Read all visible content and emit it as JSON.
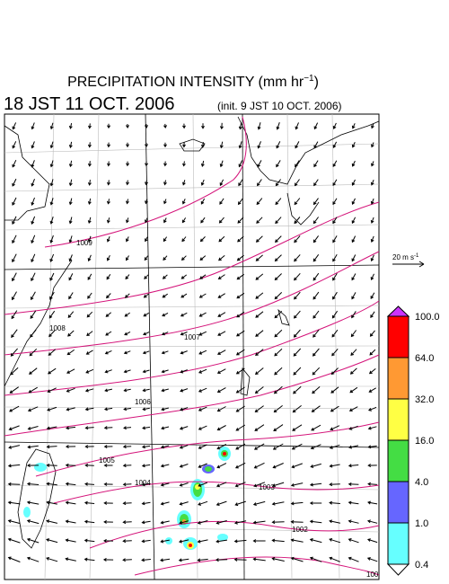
{
  "header": {
    "title": "PRECIPITATION INTENSITY (mm hr",
    "title_exponent": "−1",
    "title_close": ")",
    "valid_time": "18 JST 11 OCT. 2006",
    "init_time": "(init. 9 JST 10 OCT. 2006)"
  },
  "legend": {
    "arrow_scale": {
      "label": "20 m s",
      "exponent": "-1"
    },
    "colorbar": [
      {
        "label": "100.0",
        "color": "#ff0000"
      },
      {
        "label": "64.0",
        "color": "#ff9933"
      },
      {
        "label": "32.0",
        "color": "#ffff44"
      },
      {
        "label": "16.0",
        "color": "#44dd44"
      },
      {
        "label": "4.0",
        "color": "#6666ff"
      },
      {
        "label": "1.0",
        "color": "#66ffff"
      },
      {
        "label": "0.4",
        "color": "#ffffff"
      }
    ],
    "over_color": "#cc33ff"
  },
  "map": {
    "isobar_labels": [
      "1009",
      "1008",
      "1007",
      "1006",
      "1005",
      "1004",
      "1003",
      "1002",
      "100"
    ]
  }
}
